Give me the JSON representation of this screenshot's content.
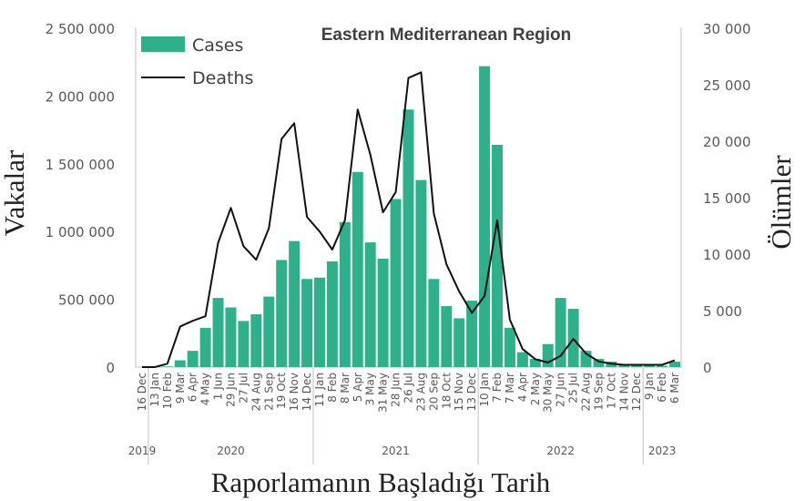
{
  "chart_data": {
    "type": "bar+line",
    "title": "Eastern Mediterranean Region",
    "xlabel": "Raporlamanın Başladığı Tarih",
    "ylabel_left": "Vakalar",
    "ylabel_right": "Ölümler",
    "ylim_left": [
      0,
      2500000
    ],
    "ylim_right": [
      0,
      30000
    ],
    "left_ticks": [
      0,
      500000,
      1000000,
      1500000,
      2000000,
      2500000
    ],
    "left_tick_labels": [
      "0",
      "500 000",
      "1 000 000",
      "1 500 000",
      "2 000 000",
      "2 500 000"
    ],
    "right_ticks": [
      0,
      5000,
      10000,
      15000,
      20000,
      25000,
      30000
    ],
    "right_tick_labels": [
      "0",
      "5 000",
      "10 000",
      "15 000",
      "20 000",
      "25 000",
      "30 000"
    ],
    "categories": [
      "16 Dec",
      "13 Jan",
      "10 Feb",
      "9 Mar",
      "6 Apr",
      "4 May",
      "1 Jun",
      "29 Jun",
      "27 Jul",
      "24 Aug",
      "21 Sep",
      "19 Oct",
      "16 Nov",
      "14 Dec",
      "11 Jan",
      "8 Feb",
      "8 Mar",
      "5 Apr",
      "3 May",
      "31 May",
      "28 Jun",
      "26 Jul",
      "23 Aug",
      "20 Sep",
      "18 Oct",
      "15 Nov",
      "13 Dec",
      "10 Jan",
      "7 Feb",
      "7 Mar",
      "4 Apr",
      "2 May",
      "30 May",
      "27 Jun",
      "25 Jul",
      "22 Aug",
      "19 Sep",
      "17 Oct",
      "14 Nov",
      "12 Dec",
      "9 Jan",
      "6 Feb",
      "6 Mar"
    ],
    "years": [
      {
        "label": "2019",
        "start": 0,
        "end": 0
      },
      {
        "label": "2020",
        "start": 1,
        "end": 13
      },
      {
        "label": "2021",
        "start": 14,
        "end": 26
      },
      {
        "label": "2022",
        "start": 27,
        "end": 39
      },
      {
        "label": "2023",
        "start": 40,
        "end": 42
      }
    ],
    "series": [
      {
        "name": "Cases",
        "type": "bar",
        "axis": "left",
        "color": "#2eb08a",
        "values": [
          0,
          0,
          5000,
          50000,
          120000,
          290000,
          510000,
          440000,
          340000,
          390000,
          520000,
          790000,
          930000,
          650000,
          660000,
          780000,
          1070000,
          1440000,
          920000,
          800000,
          1240000,
          1900000,
          1380000,
          650000,
          450000,
          360000,
          490000,
          2220000,
          1640000,
          290000,
          110000,
          60000,
          170000,
          510000,
          430000,
          120000,
          60000,
          40000,
          20000,
          10000,
          10000,
          10000,
          40000
        ]
      },
      {
        "name": "Deaths",
        "type": "line",
        "axis": "right",
        "color": "#111111",
        "values": [
          0,
          0,
          300,
          3600,
          4100,
          4500,
          11000,
          14100,
          10700,
          9500,
          12300,
          20200,
          21600,
          13300,
          12000,
          10400,
          13000,
          22800,
          18800,
          13700,
          15500,
          25600,
          26100,
          13600,
          9100,
          6700,
          4800,
          6300,
          13000,
          4200,
          1600,
          700,
          400,
          1000,
          2500,
          1200,
          500,
          300,
          200,
          200,
          200,
          200,
          600
        ]
      }
    ],
    "legend": "top-left"
  }
}
